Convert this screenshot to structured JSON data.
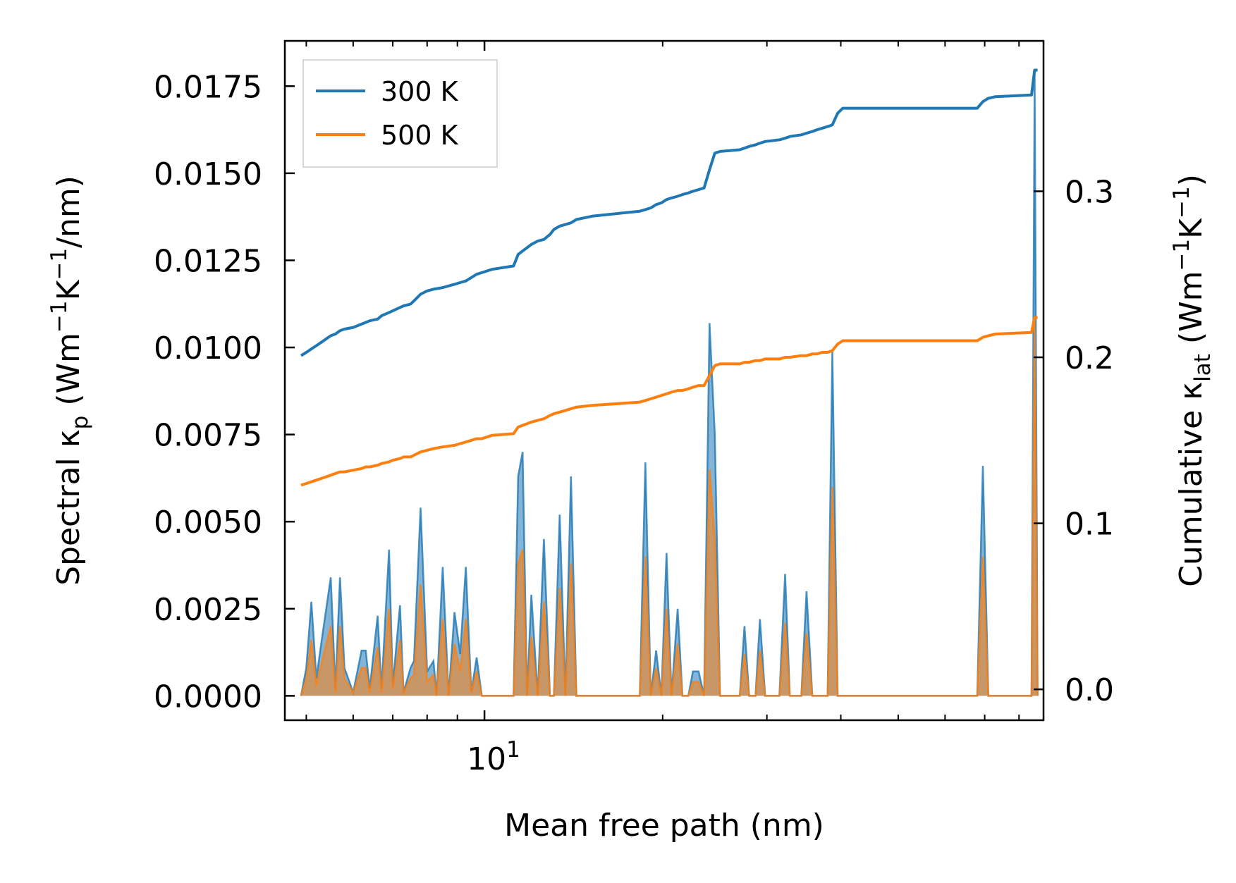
{
  "chart_data": {
    "type": "line",
    "xlabel": "Mean free path (nm)",
    "xscale": "log",
    "xlim": [
      4.6,
      88
    ],
    "x_major_tick_label": "10",
    "x_major_tick_exponent": "1",
    "x_major_tick_value": 10,
    "x_minor_ticks": [
      5,
      6,
      7,
      8,
      9,
      20,
      30,
      40,
      50,
      60,
      70,
      80
    ],
    "ylabel_left": {
      "text": "Spectral κ",
      "subscript": "p",
      "units": " (Wm",
      "sup1": "−1",
      "mid": "K",
      "sup2": "−1",
      "end": "/nm)"
    },
    "ylim_left": [
      -0.0007,
      0.0188
    ],
    "yticks_left": [
      "0.0000",
      "0.0025",
      "0.0050",
      "0.0075",
      "0.0100",
      "0.0125",
      "0.0150",
      "0.0175"
    ],
    "ylabel_right": {
      "text": "Cumulative κ",
      "subscript": "lat",
      "units": " (Wm",
      "sup1": "−1",
      "mid": "K",
      "sup2": "−1",
      "end": ")"
    },
    "ylim_right": [
      -0.0186,
      0.3906
    ],
    "yticks_right": [
      "0.0",
      "0.1",
      "0.2",
      "0.3"
    ],
    "legend": {
      "position": "top-left",
      "entries": [
        "300 K",
        "500 K"
      ]
    },
    "colors": {
      "series_300K": "#1f77b4",
      "series_500K": "#ff7f0e"
    },
    "spectral_series": [
      {
        "name": "300 K",
        "axis": "left",
        "x": [
          4.9,
          5.0,
          5.1,
          5.2,
          5.3,
          5.5,
          5.6,
          5.7,
          5.8,
          6.0,
          6.2,
          6.3,
          6.4,
          6.6,
          6.7,
          6.9,
          7.0,
          7.2,
          7.3,
          7.5,
          7.6,
          7.8,
          8.0,
          8.2,
          8.3,
          8.5,
          8.7,
          8.9,
          9.1,
          9.3,
          9.5,
          9.7,
          9.9,
          10.1,
          10.3,
          10.5,
          11.2,
          11.4,
          11.6,
          11.8,
          12.0,
          12.3,
          12.6,
          12.9,
          13.1,
          13.4,
          13.7,
          14.0,
          14.3,
          14.6,
          14.9,
          15.2,
          15.6,
          18.3,
          18.7,
          19.1,
          19.5,
          19.9,
          20.3,
          20.7,
          21.2,
          21.6,
          22.1,
          22.5,
          23.0,
          23.5,
          24.0,
          24.5,
          25.0,
          27.0,
          27.5,
          28.0,
          28.7,
          29.2,
          29.8,
          31.5,
          32.2,
          32.8,
          34.3,
          35.0,
          35.8,
          36.4,
          37.2,
          38.0,
          38.7,
          39.5,
          40.3,
          68.0,
          69.5,
          71.0,
          73.0,
          84.0,
          85.0,
          86.0
        ],
        "values": [
          0.0,
          0.0008,
          0.0027,
          0.0005,
          0.0015,
          0.0034,
          0.0002,
          0.0034,
          0.0008,
          0.0001,
          0.0013,
          0.0013,
          0.0002,
          0.0023,
          0.0002,
          0.0042,
          0.0003,
          0.0026,
          0.0001,
          0.0008,
          0.001,
          0.0054,
          0.0007,
          0.001,
          0.0,
          0.0037,
          0.0,
          0.0024,
          0.0012,
          0.0037,
          0.0001,
          0.0011,
          0.0,
          0.0,
          0.0,
          0.0,
          0.0,
          0.0063,
          0.007,
          0.0,
          0.0029,
          0.0,
          0.0045,
          0.0,
          0.0,
          0.0052,
          0.0,
          0.0063,
          0.0,
          0.0,
          0.0,
          0.0,
          0.0,
          0.0,
          0.0067,
          0.0,
          0.0013,
          0.0,
          0.0041,
          0.0,
          0.0025,
          0.0,
          0.0,
          0.0007,
          0.0007,
          0.0,
          0.0107,
          0.0075,
          0.0,
          0.0,
          0.002,
          0.0,
          0.0,
          0.0022,
          0.0,
          0.0,
          0.0035,
          0.0,
          0.0,
          0.003,
          0.0,
          0.0,
          0.0,
          0.0,
          0.0099,
          0.0,
          0.0,
          0.0,
          0.0066,
          0.0,
          0.0,
          0.0,
          0.0179,
          0.0
        ]
      },
      {
        "name": "500 K",
        "axis": "left",
        "x": [
          4.9,
          5.0,
          5.1,
          5.2,
          5.3,
          5.5,
          5.6,
          5.7,
          5.8,
          6.0,
          6.2,
          6.3,
          6.4,
          6.6,
          6.7,
          6.9,
          7.0,
          7.2,
          7.3,
          7.5,
          7.6,
          7.8,
          8.0,
          8.2,
          8.3,
          8.5,
          8.7,
          8.9,
          9.1,
          9.3,
          9.5,
          9.7,
          9.9,
          10.1,
          10.3,
          10.5,
          11.2,
          11.4,
          11.6,
          11.8,
          12.0,
          12.3,
          12.6,
          12.9,
          13.1,
          13.4,
          13.7,
          14.0,
          14.3,
          14.6,
          14.9,
          15.2,
          15.6,
          18.3,
          18.7,
          19.1,
          19.5,
          19.9,
          20.3,
          20.7,
          21.2,
          21.6,
          22.1,
          22.5,
          23.0,
          23.5,
          24.0,
          24.5,
          25.0,
          27.0,
          27.5,
          28.0,
          28.7,
          29.2,
          29.8,
          31.5,
          32.2,
          32.8,
          34.3,
          35.0,
          35.8,
          36.4,
          37.2,
          38.0,
          38.7,
          39.5,
          40.3,
          68.0,
          69.5,
          71.0,
          73.0,
          84.0,
          85.0,
          86.0
        ],
        "values": [
          0.0,
          0.0005,
          0.0016,
          0.0003,
          0.0009,
          0.002,
          0.0001,
          0.002,
          0.0005,
          0.0001,
          0.0008,
          0.0008,
          0.0001,
          0.0014,
          0.0001,
          0.0025,
          0.0002,
          0.0016,
          0.0001,
          0.0005,
          0.0006,
          0.0032,
          0.0004,
          0.0006,
          0.0,
          0.0022,
          0.0,
          0.0015,
          0.0007,
          0.0022,
          0.0001,
          0.0007,
          0.0,
          0.0,
          0.0,
          0.0,
          0.0,
          0.0038,
          0.0042,
          0.0,
          0.0017,
          0.0,
          0.0027,
          0.0,
          0.0,
          0.0031,
          0.0,
          0.0038,
          0.0,
          0.0,
          0.0,
          0.0,
          0.0,
          0.0,
          0.004,
          0.0,
          0.0008,
          0.0,
          0.0025,
          0.0,
          0.0015,
          0.0,
          0.0,
          0.0004,
          0.0004,
          0.0,
          0.0065,
          0.0045,
          0.0,
          0.0,
          0.0012,
          0.0,
          0.0,
          0.0013,
          0.0,
          0.0,
          0.0021,
          0.0,
          0.0,
          0.0018,
          0.0,
          0.0,
          0.0,
          0.0,
          0.006,
          0.0,
          0.0,
          0.0,
          0.004,
          0.0,
          0.0,
          0.0,
          0.0108,
          0.0
        ]
      }
    ],
    "cumulative_series": [
      {
        "name": "300 K",
        "axis": "right",
        "x": [
          4.9,
          5.0,
          5.1,
          5.2,
          5.3,
          5.5,
          5.6,
          5.7,
          5.8,
          6.0,
          6.2,
          6.3,
          6.4,
          6.6,
          6.7,
          6.9,
          7.0,
          7.2,
          7.3,
          7.5,
          7.6,
          7.8,
          8.0,
          8.2,
          8.5,
          8.9,
          9.1,
          9.3,
          9.5,
          9.7,
          9.9,
          10.3,
          11.2,
          11.4,
          11.6,
          11.8,
          12.0,
          12.3,
          12.6,
          12.9,
          13.1,
          13.4,
          13.7,
          14.0,
          14.3,
          15.2,
          18.3,
          18.7,
          19.1,
          19.5,
          19.9,
          20.3,
          20.7,
          21.2,
          21.6,
          22.1,
          22.5,
          23.0,
          23.5,
          24.0,
          24.5,
          25.0,
          27.0,
          27.5,
          28.0,
          28.7,
          29.2,
          29.8,
          31.5,
          32.2,
          32.8,
          34.3,
          35.0,
          35.8,
          36.4,
          37.2,
          38.0,
          38.7,
          39.5,
          40.3,
          68.0,
          69.5,
          71.0,
          73.0,
          84.0,
          85.0,
          86.0
        ],
        "values": [
          0.201,
          0.203,
          0.205,
          0.207,
          0.209,
          0.213,
          0.214,
          0.216,
          0.217,
          0.218,
          0.22,
          0.221,
          0.222,
          0.223,
          0.225,
          0.227,
          0.228,
          0.23,
          0.231,
          0.232,
          0.234,
          0.238,
          0.24,
          0.241,
          0.242,
          0.244,
          0.245,
          0.246,
          0.248,
          0.25,
          0.251,
          0.253,
          0.255,
          0.262,
          0.264,
          0.266,
          0.268,
          0.27,
          0.271,
          0.274,
          0.277,
          0.279,
          0.28,
          0.281,
          0.283,
          0.285,
          0.288,
          0.289,
          0.29,
          0.292,
          0.293,
          0.295,
          0.296,
          0.297,
          0.298,
          0.299,
          0.3,
          0.301,
          0.302,
          0.313,
          0.323,
          0.324,
          0.325,
          0.326,
          0.327,
          0.328,
          0.329,
          0.33,
          0.331,
          0.332,
          0.333,
          0.334,
          0.335,
          0.336,
          0.337,
          0.338,
          0.339,
          0.34,
          0.347,
          0.35,
          0.35,
          0.354,
          0.356,
          0.357,
          0.358,
          0.373,
          0.373
        ]
      },
      {
        "name": "500 K",
        "axis": "right",
        "x": [
          4.9,
          5.0,
          5.1,
          5.2,
          5.3,
          5.5,
          5.6,
          5.7,
          5.8,
          6.0,
          6.2,
          6.3,
          6.4,
          6.6,
          6.7,
          6.9,
          7.0,
          7.2,
          7.3,
          7.5,
          7.6,
          7.8,
          8.0,
          8.2,
          8.5,
          8.9,
          9.1,
          9.3,
          9.5,
          9.7,
          9.9,
          10.3,
          11.2,
          11.4,
          11.6,
          11.8,
          12.0,
          12.3,
          12.6,
          12.9,
          13.1,
          13.4,
          13.7,
          14.0,
          14.3,
          15.2,
          18.3,
          18.7,
          19.1,
          19.5,
          19.9,
          20.3,
          20.7,
          21.2,
          21.6,
          22.1,
          22.5,
          23.0,
          23.5,
          24.0,
          24.5,
          25.0,
          27.0,
          27.5,
          28.0,
          28.7,
          29.2,
          29.8,
          31.5,
          32.2,
          32.8,
          34.3,
          35.0,
          35.8,
          36.4,
          37.2,
          38.0,
          38.7,
          39.5,
          40.3,
          68.0,
          69.5,
          71.0,
          73.0,
          84.0,
          85.0,
          86.0
        ],
        "values": [
          0.123,
          0.124,
          0.125,
          0.126,
          0.127,
          0.129,
          0.13,
          0.131,
          0.131,
          0.132,
          0.133,
          0.134,
          0.134,
          0.135,
          0.136,
          0.137,
          0.138,
          0.139,
          0.14,
          0.14,
          0.141,
          0.143,
          0.144,
          0.145,
          0.146,
          0.147,
          0.148,
          0.149,
          0.15,
          0.151,
          0.151,
          0.153,
          0.154,
          0.158,
          0.159,
          0.16,
          0.161,
          0.162,
          0.163,
          0.165,
          0.166,
          0.167,
          0.168,
          0.169,
          0.17,
          0.171,
          0.173,
          0.174,
          0.175,
          0.176,
          0.177,
          0.178,
          0.179,
          0.18,
          0.18,
          0.181,
          0.182,
          0.183,
          0.183,
          0.189,
          0.195,
          0.196,
          0.196,
          0.197,
          0.197,
          0.198,
          0.198,
          0.199,
          0.199,
          0.2,
          0.2,
          0.201,
          0.201,
          0.202,
          0.202,
          0.203,
          0.203,
          0.204,
          0.208,
          0.21,
          0.21,
          0.212,
          0.213,
          0.214,
          0.215,
          0.224,
          0.224
        ]
      }
    ]
  }
}
